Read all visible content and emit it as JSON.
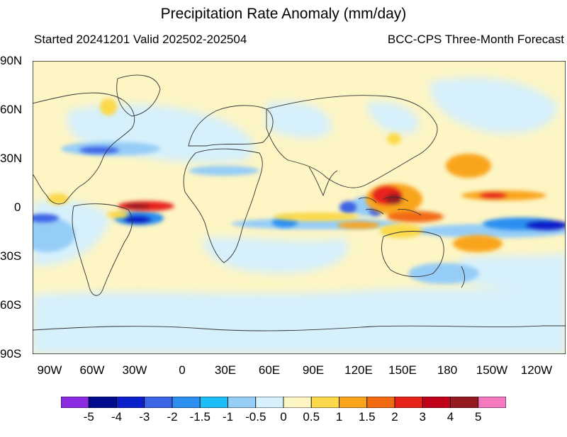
{
  "title": "Precipitation Rate Anomaly (mm/day)",
  "subtitle_left": "Started 20241201  Valid 202502-202504",
  "subtitle_right": "BCC-CPS Three-Month Forecast",
  "lat_labels": [
    "90N",
    "60N",
    "30N",
    "0",
    "30S",
    "60S",
    "90S"
  ],
  "lon_labels": [
    "90W",
    "60W",
    "30W",
    "0",
    "30E",
    "60E",
    "90E",
    "120E",
    "150E",
    "180",
    "150W",
    "120W"
  ],
  "colorbar": {
    "labels": [
      "-5",
      "-4",
      "-3",
      "-2",
      "-1.5",
      "-1",
      "-0.5",
      "0",
      "0.5",
      "1",
      "1.5",
      "2",
      "3",
      "4",
      "5"
    ],
    "colors": [
      "#8a2be2",
      "#000c8c",
      "#0a1fc9",
      "#3c64e6",
      "#2c8ff0",
      "#1fbdf5",
      "#96cdf7",
      "#d6f0fc",
      "#fdf5c4",
      "#fbd94a",
      "#f9a51c",
      "#f26a12",
      "#e8231b",
      "#c1001b",
      "#951b22",
      "#f47ac0"
    ]
  },
  "map_data": {
    "projection": "cylindrical equidistant",
    "lon_range": [
      -100,
      260
    ],
    "lat_range": [
      -90,
      90
    ],
    "background_anomaly": "0 to 0.5",
    "anomaly_features": [
      {
        "region": "Western Pacific warm pool",
        "anomaly": "3 to 5+"
      },
      {
        "region": "Equatorial Atlantic / NE Brazil coast",
        "anomaly": "3 to 5"
      },
      {
        "region": "Central Pacific ITCZ (~10N)",
        "anomaly": "2 to 4"
      },
      {
        "region": "NE Pacific subtropics (~30N)",
        "anomaly": "1 to 2"
      },
      {
        "region": "Eastern equatorial Pacific",
        "anomaly": "-3 to -5"
      },
      {
        "region": "Northeast Brazil",
        "anomaly": "-3 to -4"
      },
      {
        "region": "Equatorial Indian Ocean",
        "anomaly": "-1 to -3"
      },
      {
        "region": "Maritime Continent",
        "anomaly": "-1 to -2"
      },
      {
        "region": "South Pacific Convergence Zone",
        "anomaly": "1 to 2"
      },
      {
        "region": "North Atlantic",
        "anomaly": "-1 to -1.5"
      },
      {
        "region": "Southern Ocean",
        "anomaly": "-0.5 to 0"
      }
    ]
  }
}
